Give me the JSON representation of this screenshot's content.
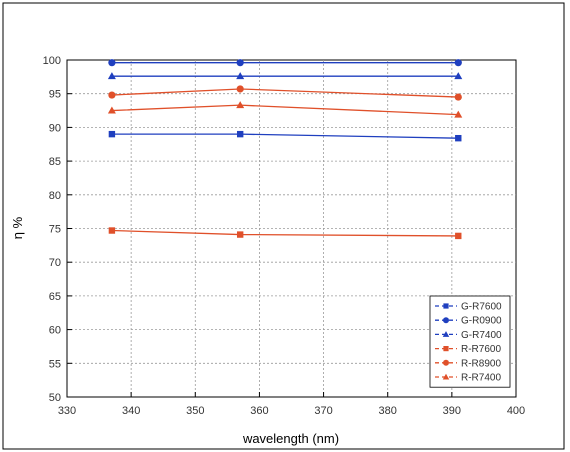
{
  "chart_data": {
    "type": "line",
    "title": "",
    "xlabel": "wavelength (nm)",
    "ylabel": "η %",
    "xlim": [
      330,
      400
    ],
    "ylim": [
      50,
      100
    ],
    "xticks": [
      330,
      340,
      350,
      360,
      370,
      380,
      390,
      400
    ],
    "yticks": [
      50,
      55,
      60,
      65,
      70,
      75,
      80,
      85,
      90,
      95,
      100
    ],
    "grid": true,
    "legend_position": "bottom-right",
    "colors": {
      "G": "#1f3fbf",
      "R": "#e0502a"
    },
    "series": [
      {
        "name": "G-R7600",
        "marker": "square",
        "color": "#1f3fbf",
        "x": [
          337,
          357,
          391
        ],
        "y": [
          89.0,
          89.0,
          88.4
        ]
      },
      {
        "name": "G-R0900",
        "marker": "circle",
        "color": "#1f3fbf",
        "x": [
          337,
          357,
          391
        ],
        "y": [
          99.6,
          99.6,
          99.6
        ]
      },
      {
        "name": "G-R7400",
        "marker": "triangle",
        "color": "#1f3fbf",
        "x": [
          337,
          357,
          391
        ],
        "y": [
          97.6,
          97.6,
          97.6
        ]
      },
      {
        "name": "R-R7600",
        "marker": "square",
        "color": "#e0502a",
        "x": [
          337,
          357,
          391
        ],
        "y": [
          74.7,
          74.1,
          73.9
        ]
      },
      {
        "name": "R-R8900",
        "marker": "circle",
        "color": "#e0502a",
        "x": [
          337,
          357,
          391
        ],
        "y": [
          94.8,
          95.7,
          94.5
        ]
      },
      {
        "name": "R-R7400",
        "marker": "triangle",
        "color": "#e0502a",
        "x": [
          337,
          357,
          391
        ],
        "y": [
          92.5,
          93.3,
          91.9
        ]
      }
    ]
  }
}
